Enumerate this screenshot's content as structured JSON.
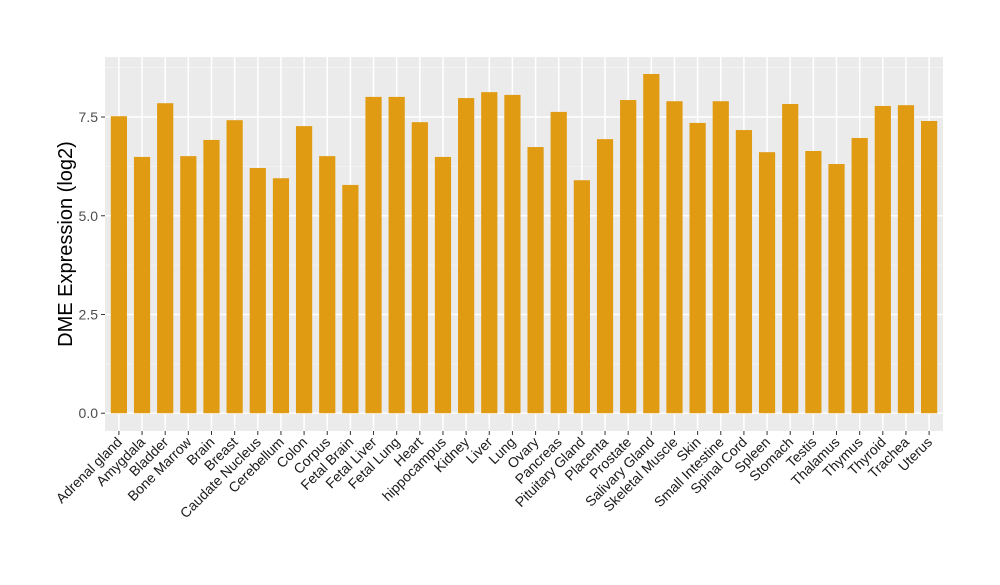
{
  "chart_data": {
    "type": "bar",
    "title": "",
    "xlabel": "",
    "ylabel": "DME Expression (log2)",
    "ylim": [
      -0.45,
      9.02
    ],
    "yticks": [
      0.0,
      2.5,
      5.0,
      7.5
    ],
    "ytick_labels": [
      "0.0",
      "2.5",
      "5.0",
      "7.5"
    ],
    "grid": true,
    "bar_color": "#E09B12",
    "panel_color": "#EBEBEB",
    "categories": [
      "Adrenal gland",
      "Amygdala",
      "Bladder",
      "Bone Marrow",
      "Brain",
      "Breast",
      "Caudate Nucleus",
      "Cerebellum",
      "Colon",
      "Corpus",
      "Fetal Brain",
      "Fetal Liver",
      "Fetal Lung",
      "Heart",
      "hippocampus",
      "Kidney",
      "Liver",
      "Lung",
      "Ovary",
      "Pancreas",
      "Pituitary Gland",
      "Placenta",
      "Prostate",
      "Salivary Gland",
      "Skeletal Muscle",
      "Skin",
      "Small Intestine",
      "Spinal Cord",
      "Spleen",
      "Stomach",
      "Testis",
      "Thalamus",
      "Thymus",
      "Thyroid",
      "Trachea",
      "Uterus"
    ],
    "values": [
      7.52,
      6.49,
      7.85,
      6.51,
      6.92,
      7.42,
      6.21,
      5.95,
      7.27,
      6.51,
      5.78,
      8.01,
      8.01,
      7.37,
      6.49,
      7.98,
      8.13,
      8.06,
      6.74,
      7.63,
      5.9,
      6.94,
      7.93,
      8.59,
      7.9,
      7.35,
      7.9,
      7.17,
      6.61,
      7.83,
      6.64,
      6.31,
      6.97,
      7.78,
      7.8,
      7.4
    ]
  }
}
